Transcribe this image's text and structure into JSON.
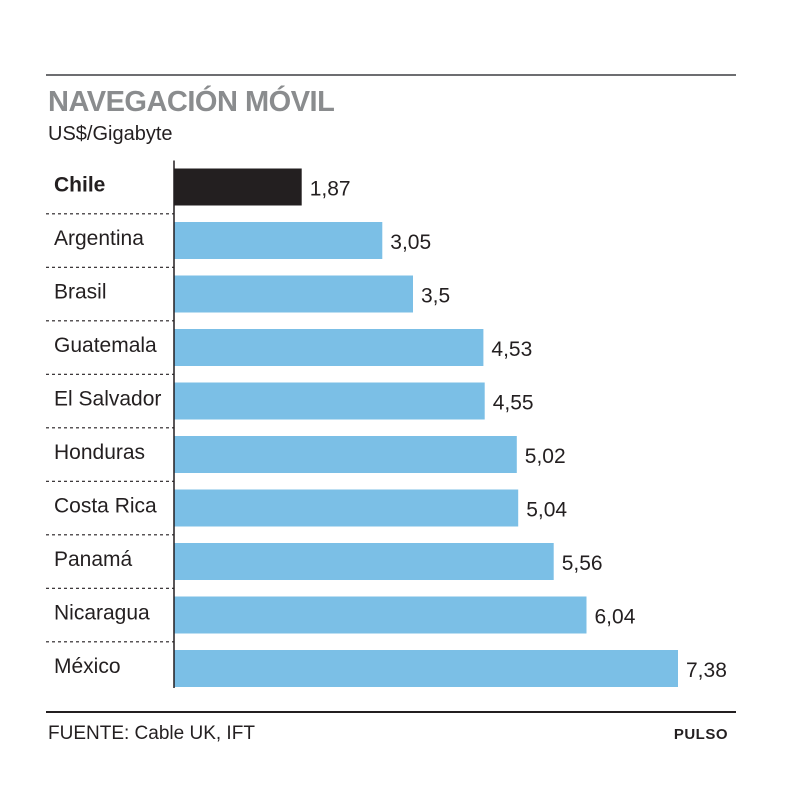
{
  "header": {
    "title": "NAVEGACIÓN MÓVIL",
    "subtitle": "US$/Gigabyte"
  },
  "footer": {
    "source": "FUENTE: Cable UK, IFT",
    "brand": "PULSO"
  },
  "colors": {
    "highlight_bar": "#231f20",
    "bar": "#7bbfe6",
    "separator": "#231f20"
  },
  "chart_data": {
    "type": "bar",
    "orientation": "horizontal",
    "title": "NAVEGACIÓN MÓVIL",
    "subtitle": "US$/Gigabyte",
    "categories": [
      "Chile",
      "Argentina",
      "Brasil",
      "Guatemala",
      "El Salvador",
      "Honduras",
      "Costa Rica",
      "Panamá",
      "Nicaragua",
      "México"
    ],
    "values": [
      1.87,
      3.05,
      3.5,
      4.53,
      4.55,
      5.02,
      5.04,
      5.56,
      6.04,
      7.38
    ],
    "value_labels": [
      "1,87",
      "3,05",
      "3,5",
      "4,53",
      "4,55",
      "5,02",
      "5,04",
      "5,56",
      "6,04",
      "7,38"
    ],
    "highlighted_category": "Chile",
    "xlim": [
      0,
      7.38
    ],
    "grid": false,
    "legend": "none"
  }
}
